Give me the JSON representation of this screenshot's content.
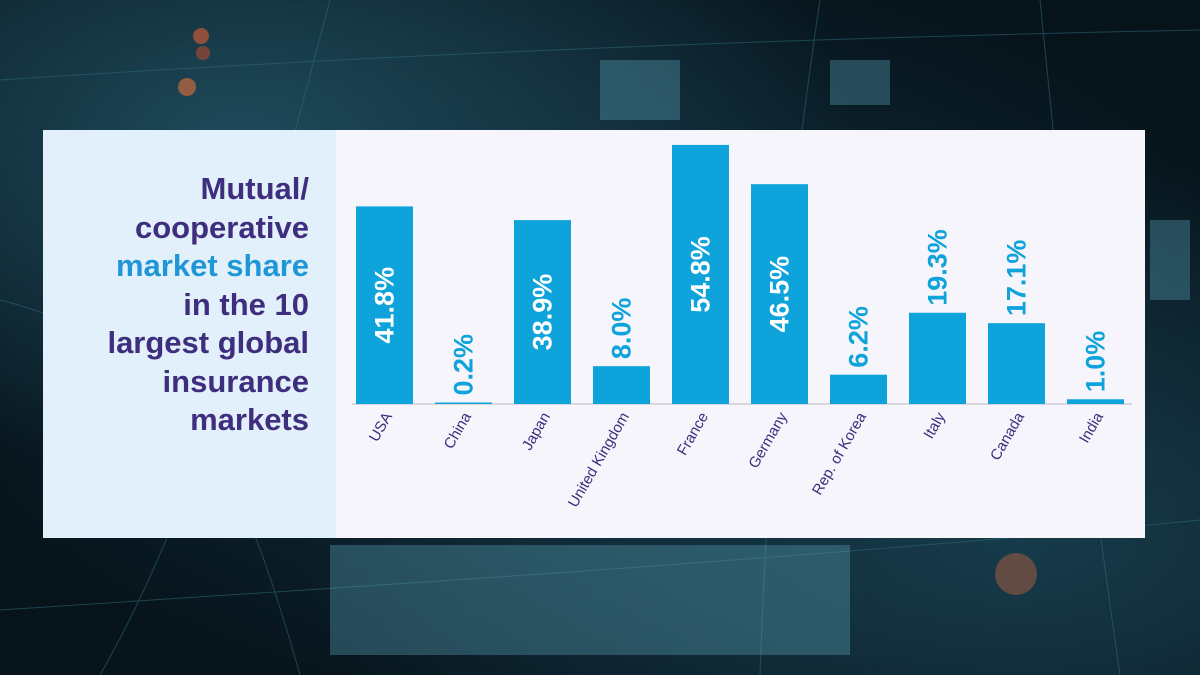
{
  "title": {
    "line1": "Mutual/",
    "line2": "cooperative",
    "line3": "market share",
    "line4": "in the 10",
    "line5": "largest global",
    "line6": "insurance",
    "line7": "markets"
  },
  "colors": {
    "bar": "#0fa3db",
    "title": "#3f2d7e",
    "accent": "#1f97d6",
    "label_inside": "#ffffff",
    "label_outside": "#0fa3db"
  },
  "chart_data": {
    "type": "bar",
    "categories": [
      "USA",
      "China",
      "Japan",
      "United Kingdom",
      "France",
      "Germany",
      "Rep. of Korea",
      "Italy",
      "Canada",
      "India"
    ],
    "values": [
      41.8,
      0.2,
      38.9,
      8.0,
      54.8,
      46.5,
      6.2,
      19.3,
      17.1,
      1.0
    ],
    "labels": [
      "41.8%",
      "0.2%",
      "38.9%",
      "8.0%",
      "54.8%",
      "46.5%",
      "6.2%",
      "19.3%",
      "17.1%",
      "1.0%"
    ],
    "title": "Mutual/cooperative market share in the 10 largest global insurance markets",
    "xlabel": "",
    "ylabel": "",
    "ylim": [
      0,
      55
    ],
    "grid": false,
    "legend": "none"
  }
}
